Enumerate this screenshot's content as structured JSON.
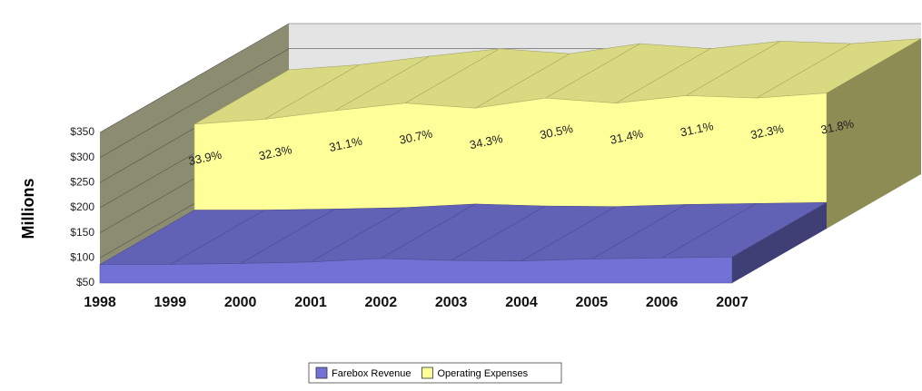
{
  "chart_data": {
    "type": "area3d",
    "y_label": "Millions",
    "categories": [
      "1998",
      "1999",
      "2000",
      "2001",
      "2002",
      "2003",
      "2004",
      "2005",
      "2006",
      "2007"
    ],
    "series": [
      {
        "name": "Farebox Revenue",
        "color": "#7272d6",
        "values": [
          87,
          87,
          89,
          92,
          99,
          95,
          94,
          98,
          100,
          102
        ]
      },
      {
        "name": "Operating Expenses",
        "color": "#ffff99",
        "values": [
          258,
          268,
          285,
          300,
          290,
          310,
          300,
          315,
          310,
          320
        ]
      }
    ],
    "annotations": [
      "33.9%",
      "32.3%",
      "31.1%",
      "30.7%",
      "34.3%",
      "30.5%",
      "31.4%",
      "31.1%",
      "32.3%",
      "31.8%"
    ],
    "ylim": [
      50,
      350
    ],
    "yticks": [
      {
        "value": 50,
        "label": "$50"
      },
      {
        "value": 100,
        "label": "$100"
      },
      {
        "value": 150,
        "label": "$150"
      },
      {
        "value": 200,
        "label": "$200"
      },
      {
        "value": 250,
        "label": "$250"
      },
      {
        "value": 300,
        "label": "$300"
      },
      {
        "value": 350,
        "label": "$350"
      }
    ],
    "grid": true,
    "legend": "bottom"
  }
}
